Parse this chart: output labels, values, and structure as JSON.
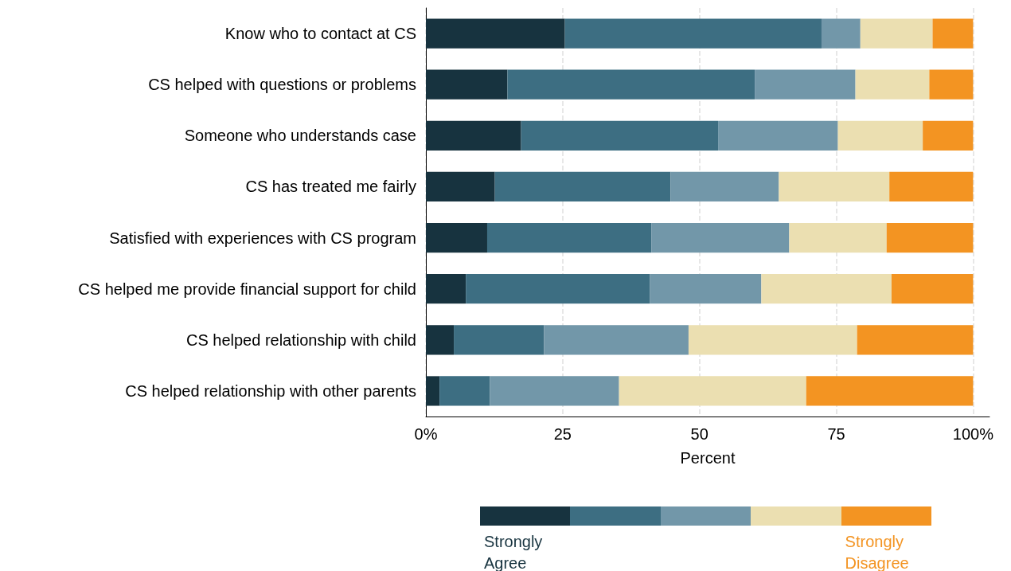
{
  "chart_data": {
    "type": "bar",
    "orientation": "horizontal",
    "stacked": true,
    "xlabel": "Percent",
    "categories": [
      "Know who to contact at CS",
      "CS helped with questions or problems",
      "Someone who understands case",
      "CS has treated me fairly",
      "Satisfied with experiences with CS program",
      "CS helped me provide financial support for child",
      "CS helped relationship with child",
      "CS helped relationship with other parents"
    ],
    "series": [
      {
        "name": "Strongly Agree",
        "color": "#17333f",
        "values": [
          25.4,
          14.9,
          17.4,
          12.6,
          11.2,
          7.3,
          5.1,
          2.5
        ]
      },
      {
        "color": "#3d6e82",
        "values": [
          46.9,
          45.2,
          36.0,
          32.1,
          30.0,
          33.6,
          16.5,
          9.2
        ]
      },
      {
        "color": "#7297a9",
        "values": [
          7.1,
          18.4,
          21.9,
          19.8,
          25.2,
          20.4,
          26.4,
          23.6
        ]
      },
      {
        "color": "#ebdfb1",
        "values": [
          13.2,
          13.5,
          15.5,
          20.2,
          17.8,
          23.8,
          30.8,
          34.2
        ]
      },
      {
        "name": "Strongly Disagree",
        "color": "#f39422",
        "values": [
          7.4,
          8.0,
          9.2,
          15.3,
          15.8,
          14.9,
          21.2,
          30.5
        ]
      }
    ],
    "xlim": [
      0,
      103
    ],
    "xticks": [
      {
        "value": 0,
        "label": "0%"
      },
      25,
      50,
      75,
      {
        "value": 100,
        "label": "100%"
      }
    ],
    "grid": "x",
    "legend": "bottom"
  }
}
